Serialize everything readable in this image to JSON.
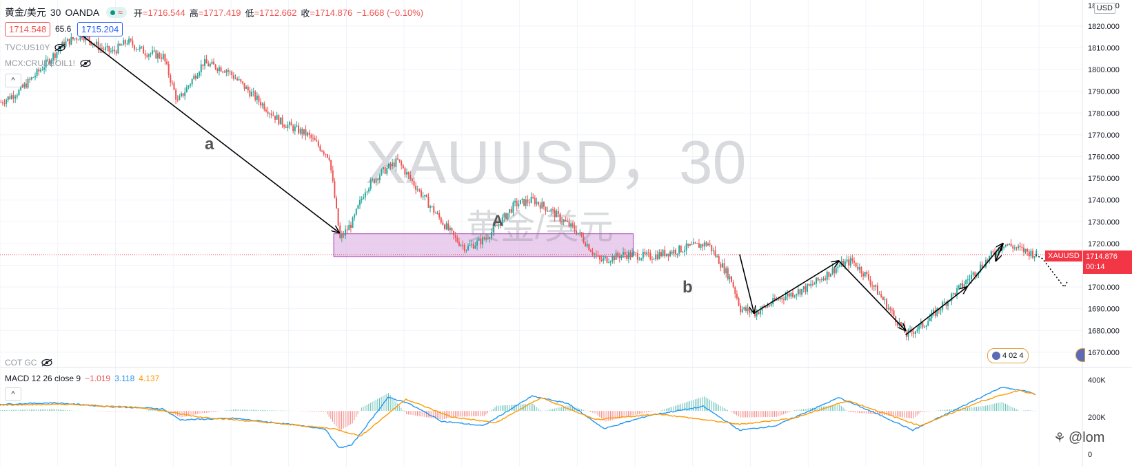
{
  "header": {
    "symbol": "黄金/美元",
    "interval": "30",
    "source": "OANDA",
    "open_label": "开",
    "open": "=1716.544",
    "high_label": "高",
    "high": "=1717.419",
    "low_label": "低",
    "low": "=1712.662",
    "close_label": "收",
    "close": "=1714.876",
    "change": "−1.668 (−0.10%)",
    "bid": "1714.548",
    "spread": "65.6",
    "ask": "1715.204"
  },
  "indicators": {
    "tvc": "TVC:US10Y",
    "mcx": "MCX:CRUDEOIL1!",
    "cot": "COT GC",
    "macd_label": "MACD 12 26 close 9",
    "macd_hist": "−1.019",
    "macd_line": "3.118",
    "macd_signal": "4.137"
  },
  "watermark": {
    "ticker": "XAUUSD，30",
    "name": "黄金/美元"
  },
  "annotations": {
    "a": "a",
    "A": "A",
    "b": "b"
  },
  "price_scale": {
    "currency": "USD",
    "ticks": [
      "1820.000",
      "1810.000",
      "1800.000",
      "1790.000",
      "1780.000",
      "1770.000",
      "1760.000",
      "1750.000",
      "1740.000",
      "1730.000",
      "1720.000",
      "1710.000",
      "1700.000",
      "1690.000",
      "1680.000",
      "1670.000"
    ],
    "top_partial": "18__.000"
  },
  "lower_scale": {
    "ticks": [
      "400K",
      "200K",
      "0"
    ]
  },
  "last_price": {
    "symbol": "XAUUSD",
    "price": "1714.876",
    "countdown": "00:14"
  },
  "events": {
    "label": "4 02 4"
  },
  "signature": {
    "text": "@lom"
  },
  "colors": {
    "up": "#26a69a",
    "down": "#ef5350",
    "zone_fill": "#e1bee7",
    "zone_stroke": "#ab47bc",
    "macd_line": "#2196f3",
    "signal_line": "#ff9800",
    "price_tag": "#f23645"
  },
  "chart_data": {
    "type": "candlestick",
    "symbol": "XAUUSD",
    "interval": "30",
    "ylim": [
      1663,
      1832
    ],
    "zone": [
      1714,
      1724.5
    ],
    "last_close": 1714.876,
    "price_path": [
      [
        0,
        1785
      ],
      [
        10,
        1790
      ],
      [
        22,
        1800
      ],
      [
        35,
        1812
      ],
      [
        45,
        1816
      ],
      [
        55,
        1810
      ],
      [
        62,
        1808
      ],
      [
        70,
        1813
      ],
      [
        80,
        1808
      ],
      [
        90,
        1806
      ],
      [
        98,
        1785
      ],
      [
        112,
        1803
      ],
      [
        125,
        1800
      ],
      [
        140,
        1788
      ],
      [
        155,
        1776
      ],
      [
        170,
        1770
      ],
      [
        182,
        1760
      ],
      [
        188,
        1722
      ],
      [
        195,
        1730
      ],
      [
        202,
        1745
      ],
      [
        210,
        1752
      ],
      [
        220,
        1758
      ],
      [
        225,
        1752
      ],
      [
        240,
        1735
      ],
      [
        252,
        1722
      ],
      [
        258,
        1718
      ],
      [
        268,
        1722
      ],
      [
        275,
        1728
      ],
      [
        285,
        1738
      ],
      [
        295,
        1740
      ],
      [
        305,
        1735
      ],
      [
        320,
        1725
      ],
      [
        332,
        1712
      ],
      [
        345,
        1715
      ],
      [
        360,
        1714
      ],
      [
        380,
        1718
      ],
      [
        392,
        1720
      ],
      [
        405,
        1703
      ],
      [
        410,
        1690
      ],
      [
        418,
        1688
      ],
      [
        432,
        1695
      ],
      [
        448,
        1700
      ],
      [
        465,
        1710
      ],
      [
        472,
        1712
      ],
      [
        480,
        1705
      ],
      [
        490,
        1693
      ],
      [
        502,
        1678
      ],
      [
        512,
        1683
      ],
      [
        520,
        1690
      ],
      [
        532,
        1700
      ],
      [
        546,
        1712
      ],
      [
        556,
        1720
      ],
      [
        566,
        1717
      ],
      [
        574,
        1714.876
      ]
    ],
    "forecast": [
      [
        578,
        1713
      ],
      [
        588,
        1702
      ],
      [
        590,
        1700
      ],
      [
        592,
        1703
      ]
    ],
    "arrows": [
      {
        "from": [
          45,
          1816
        ],
        "to": [
          188,
          1725
        ]
      },
      {
        "from": [
          410,
          1715
        ],
        "to": [
          418,
          1688
        ]
      },
      {
        "from": [
          418,
          1688
        ],
        "to": [
          465,
          1712
        ]
      },
      {
        "from": [
          465,
          1712
        ],
        "to": [
          502,
          1680
        ]
      },
      {
        "from": [
          502,
          1678
        ],
        "to": [
          536,
          1700
        ]
      },
      {
        "from": [
          536,
          1700
        ],
        "to": [
          556,
          1720
        ]
      },
      {
        "from": [
          556,
          1720
        ],
        "to": [
          552,
          1712
        ]
      }
    ],
    "macd_path": [
      [
        0,
        0.45
      ],
      [
        30,
        0.55
      ],
      [
        60,
        0.3
      ],
      [
        90,
        0.15
      ],
      [
        100,
        -0.6
      ],
      [
        130,
        -0.5
      ],
      [
        160,
        -0.9
      ],
      [
        180,
        -1.2
      ],
      [
        188,
        -2.5
      ],
      [
        195,
        -2.3
      ],
      [
        215,
        0.9
      ],
      [
        225,
        0.6
      ],
      [
        245,
        -0.7
      ],
      [
        268,
        -1.0
      ],
      [
        295,
        1.0
      ],
      [
        315,
        0.5
      ],
      [
        335,
        -1.2
      ],
      [
        360,
        -0.3
      ],
      [
        390,
        0.3
      ],
      [
        410,
        -1.3
      ],
      [
        430,
        -1.0
      ],
      [
        465,
        0.9
      ],
      [
        490,
        -0.4
      ],
      [
        506,
        -1.3
      ],
      [
        530,
        0.1
      ],
      [
        555,
        1.6
      ],
      [
        570,
        1.3
      ],
      [
        578,
        0.9
      ]
    ],
    "signal_path": [
      [
        0,
        0.4
      ],
      [
        40,
        0.45
      ],
      [
        80,
        0.2
      ],
      [
        110,
        -0.4
      ],
      [
        150,
        -0.8
      ],
      [
        185,
        -1.2
      ],
      [
        200,
        -1.7
      ],
      [
        225,
        0.8
      ],
      [
        250,
        -0.4
      ],
      [
        275,
        -0.8
      ],
      [
        300,
        0.9
      ],
      [
        330,
        -0.6
      ],
      [
        365,
        -0.2
      ],
      [
        410,
        -0.9
      ],
      [
        440,
        -0.5
      ],
      [
        470,
        0.7
      ],
      [
        510,
        -1.0
      ],
      [
        545,
        0.7
      ],
      [
        565,
        1.4
      ],
      [
        578,
        1.0
      ]
    ],
    "macd_ylim": [
      -3.2,
      2.1
    ]
  }
}
